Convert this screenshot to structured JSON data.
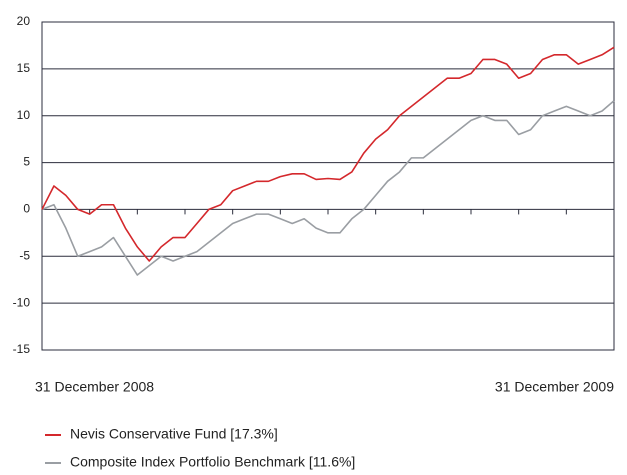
{
  "chart_data": {
    "type": "line",
    "categories": [
      "31 December 2008",
      null,
      null,
      null,
      null,
      null,
      null,
      null,
      null,
      null,
      null,
      null,
      null,
      null,
      null,
      null,
      null,
      null,
      null,
      null,
      null,
      null,
      null,
      null,
      null,
      null,
      null,
      null,
      null,
      null,
      null,
      null,
      null,
      null,
      null,
      null,
      null,
      null,
      null,
      null,
      null,
      null,
      null,
      null,
      null,
      null,
      null,
      null,
      "31 December 2009"
    ],
    "series": [
      {
        "name": "Nevis Conservative Fund [17.3%]",
        "color": "#d4282c",
        "values": [
          0,
          2.5,
          1.5,
          0,
          -0.5,
          0.5,
          0.5,
          -2,
          -4,
          -5.5,
          -4,
          -3,
          -3,
          -1.5,
          0,
          0.5,
          2,
          2.5,
          3,
          3,
          3.5,
          3.8,
          3.8,
          3.2,
          3.3,
          3.2,
          4,
          6,
          7.5,
          8.5,
          10,
          11,
          12,
          13,
          14,
          14,
          14.5,
          16,
          16,
          15.5,
          14,
          14.5,
          16,
          16.5,
          16.5,
          15.5,
          16,
          16.5,
          17.3
        ]
      },
      {
        "name": "Composite Index Portfolio Benchmark [11.6%]",
        "color": "#9a9ea3",
        "values": [
          0,
          0.5,
          -2,
          -5,
          -4.5,
          -4,
          -3,
          -5,
          -7,
          -6,
          -5,
          -5.5,
          -5,
          -4.5,
          -3.5,
          -2.5,
          -1.5,
          -1,
          -0.5,
          -0.5,
          -1,
          -1.5,
          -1,
          -2,
          -2.5,
          -2.5,
          -1,
          0,
          1.5,
          3,
          4,
          5.5,
          5.5,
          6.5,
          7.5,
          8.5,
          9.5,
          10,
          9.5,
          9.5,
          8,
          8.5,
          10,
          10.5,
          11,
          10.5,
          10,
          10.5,
          11.6
        ]
      }
    ],
    "ylim": [
      -15,
      20
    ],
    "yticks": [
      -15,
      -10,
      -5,
      0,
      5,
      10,
      15,
      20
    ],
    "grid": true
  }
}
